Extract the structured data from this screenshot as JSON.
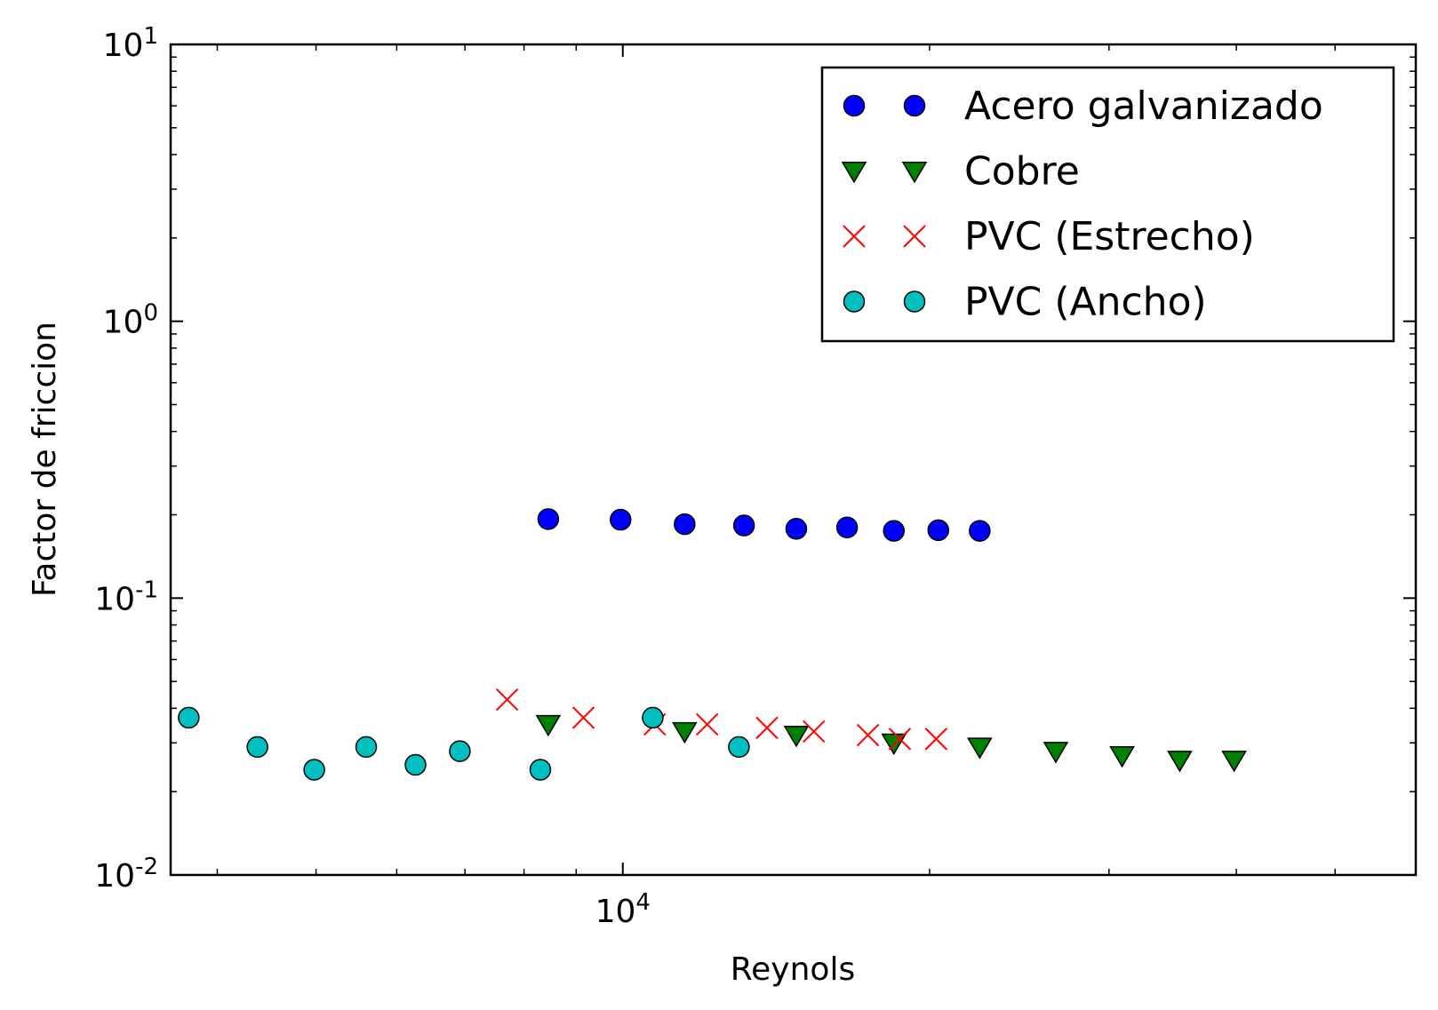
{
  "chart_data": {
    "type": "scatter",
    "title": "",
    "xlabel": "Reynols",
    "ylabel": "Factor de friccion",
    "xscale": "log",
    "yscale": "log",
    "xlim": [
      3600,
      60000
    ],
    "ylim": [
      0.01,
      10
    ],
    "grid": false,
    "legend_position": "top-right",
    "x_major_ticks": [
      {
        "value": 10000,
        "base": "10",
        "exp": "4"
      }
    ],
    "x_minor_ticks": [
      4000,
      5000,
      6000,
      7000,
      8000,
      9000,
      20000,
      30000,
      40000,
      50000
    ],
    "y_major_ticks": [
      {
        "value": 0.01,
        "base": "10",
        "exp": "-2"
      },
      {
        "value": 0.1,
        "base": "10",
        "exp": "-1"
      },
      {
        "value": 1,
        "base": "10",
        "exp": "0"
      },
      {
        "value": 10,
        "base": "10",
        "exp": "1"
      }
    ],
    "series": [
      {
        "name": "Acero galvanizado",
        "marker": "circle",
        "color": "#0000ff",
        "points": [
          [
            8450,
            0.193
          ],
          [
            9950,
            0.192
          ],
          [
            11500,
            0.185
          ],
          [
            13150,
            0.183
          ],
          [
            14800,
            0.178
          ],
          [
            16600,
            0.18
          ],
          [
            18450,
            0.175
          ],
          [
            20400,
            0.176
          ],
          [
            22400,
            0.175
          ]
        ]
      },
      {
        "name": "Cobre",
        "marker": "triangle-down",
        "color": "#008000",
        "points": [
          [
            8450,
            0.035
          ],
          [
            11500,
            0.033
          ],
          [
            14800,
            0.032
          ],
          [
            18450,
            0.03
          ],
          [
            22400,
            0.029
          ],
          [
            26600,
            0.028
          ],
          [
            30900,
            0.027
          ],
          [
            35200,
            0.026
          ],
          [
            39800,
            0.026
          ]
        ]
      },
      {
        "name": "PVC (Estrecho)",
        "marker": "x",
        "color": "#ff0000",
        "points": [
          [
            7700,
            0.043
          ],
          [
            9150,
            0.037
          ],
          [
            10750,
            0.035
          ],
          [
            12100,
            0.035
          ],
          [
            13850,
            0.034
          ],
          [
            15400,
            0.033
          ],
          [
            17400,
            0.032
          ],
          [
            18700,
            0.031
          ],
          [
            20300,
            0.031
          ]
        ]
      },
      {
        "name": "PVC (Ancho)",
        "marker": "circle",
        "color": "#00bfbf",
        "points": [
          [
            3750,
            0.037
          ],
          [
            4380,
            0.029
          ],
          [
            4980,
            0.024
          ],
          [
            5600,
            0.029
          ],
          [
            6260,
            0.025
          ],
          [
            6920,
            0.028
          ],
          [
            8300,
            0.024
          ],
          [
            10700,
            0.037
          ],
          [
            13000,
            0.029
          ]
        ]
      }
    ]
  }
}
